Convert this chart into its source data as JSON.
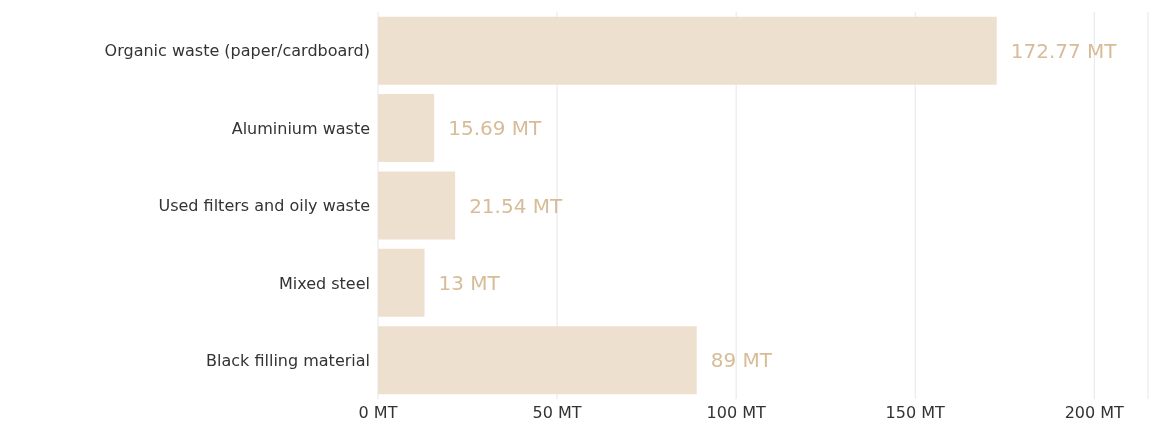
{
  "chart_data": {
    "type": "bar",
    "orientation": "horizontal",
    "categories": [
      "Organic waste (paper/cardboard)",
      "Aluminium waste",
      "Used filters and oily waste",
      "Mixed steel",
      "Black filling material"
    ],
    "values": [
      172.77,
      15.69,
      21.54,
      13,
      89
    ],
    "value_labels": [
      "172.77 MT",
      "15.69 MT",
      "21.54 MT",
      "13 MT",
      "89 MT"
    ],
    "color": "#ede0ce",
    "xlim": [
      0,
      215
    ],
    "xticks": [
      {
        "value": 0,
        "label": "0 MT"
      },
      {
        "value": 50,
        "label": "50 MT"
      },
      {
        "value": 100,
        "label": "100 MT"
      },
      {
        "value": 150,
        "label": "150 MT"
      },
      {
        "value": 200,
        "label": "200 MT"
      }
    ],
    "grid": "x"
  }
}
